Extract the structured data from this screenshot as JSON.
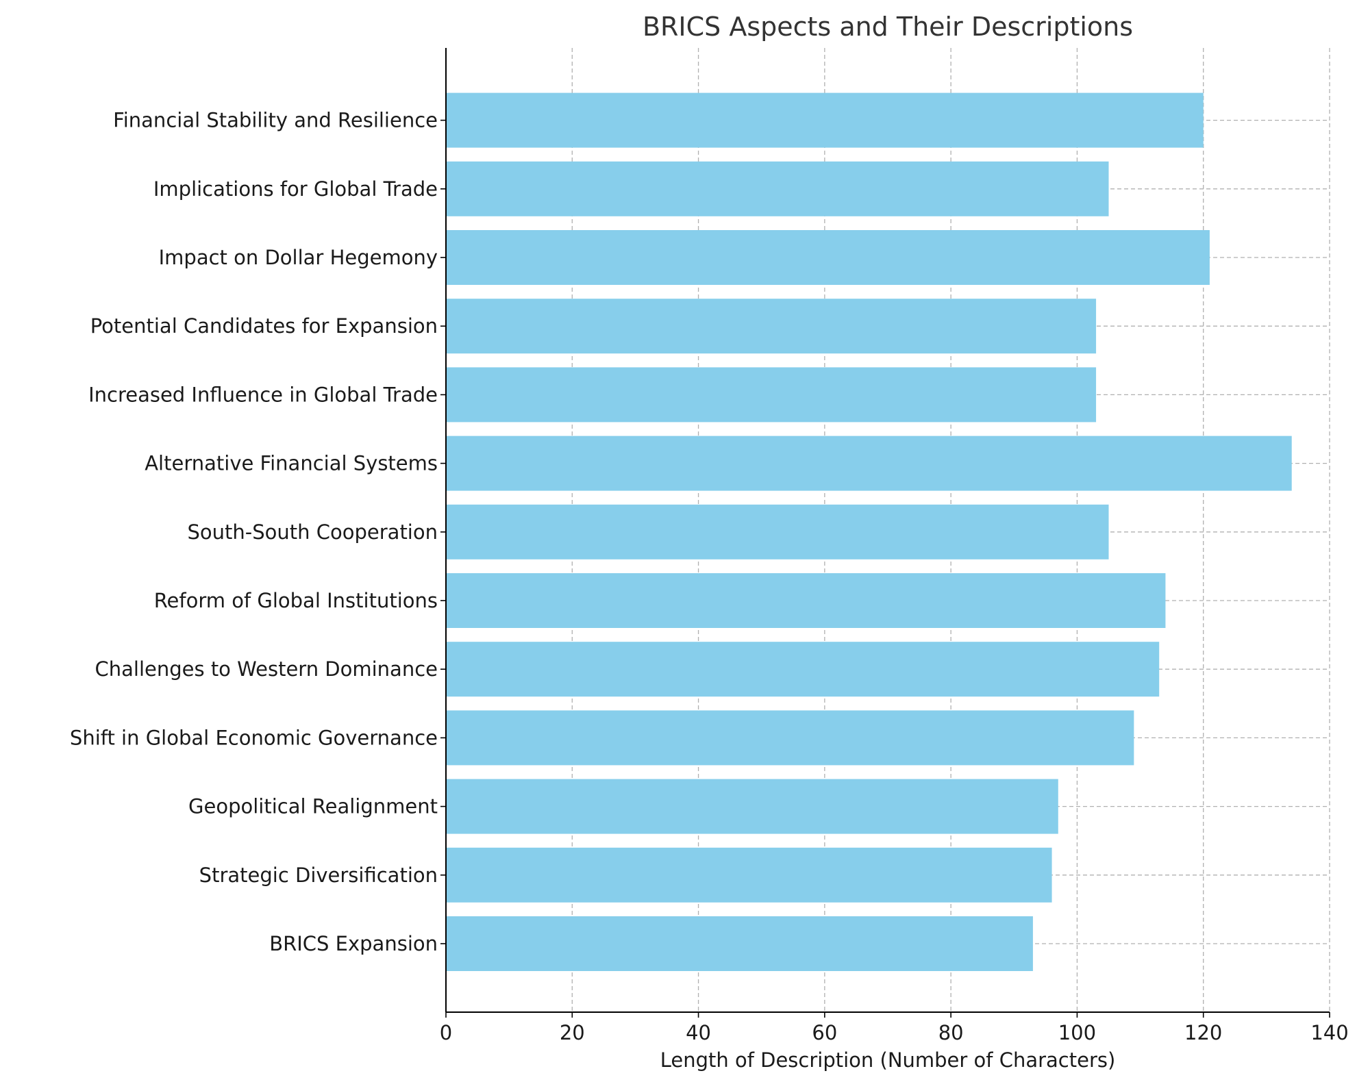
{
  "chart_data": {
    "type": "bar",
    "orientation": "horizontal",
    "title": "BRICS Aspects and Their Descriptions",
    "xlabel": "Length of Description (Number of Characters)",
    "ylabel": "",
    "xlim": [
      0,
      140
    ],
    "xticks": [
      0,
      20,
      40,
      60,
      80,
      100,
      120,
      140
    ],
    "grid": true,
    "bar_color": "#87CEEB",
    "categories": [
      "BRICS Expansion",
      "Strategic Diversification",
      "Geopolitical Realignment",
      "Shift in Global Economic Governance",
      "Challenges to Western Dominance",
      "Reform of Global Institutions",
      "South-South Cooperation",
      "Alternative Financial Systems",
      "Increased Influence in Global Trade",
      "Potential Candidates for Expansion",
      "Impact on Dollar Hegemony",
      "Implications for Global Trade",
      "Financial Stability and Resilience"
    ],
    "values": [
      93,
      96,
      97,
      109,
      113,
      114,
      105,
      134,
      103,
      103,
      121,
      105,
      120
    ]
  }
}
